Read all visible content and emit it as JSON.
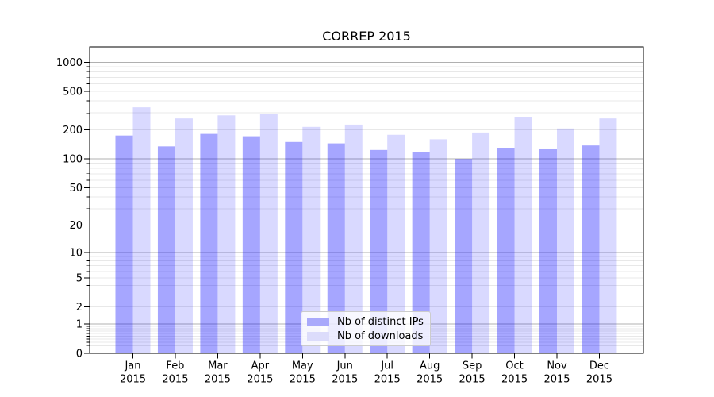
{
  "chart_data": {
    "type": "bar",
    "title": "CORREP 2015",
    "categories": [
      "Jan",
      "Feb",
      "Mar",
      "Apr",
      "May",
      "Jun",
      "Jul",
      "Aug",
      "Sep",
      "Oct",
      "Nov",
      "Dec"
    ],
    "year_label": "2015",
    "series": [
      {
        "name": "Nb of distinct IPs",
        "color": "rgba(0,0,255,0.35)",
        "legend_color": "#a9a9fb",
        "values": [
          175,
          135,
          182,
          172,
          150,
          145,
          124,
          117,
          100,
          129,
          126,
          138
        ]
      },
      {
        "name": "Nb of downloads",
        "color": "rgba(0,0,255,0.15)",
        "legend_color": "#dcdcfb",
        "values": [
          343,
          263,
          283,
          290,
          215,
          227,
          178,
          160,
          188,
          274,
          207,
          263
        ]
      }
    ],
    "yscale": "log1p",
    "yticks": [
      0,
      1,
      2,
      5,
      10,
      20,
      50,
      100,
      200,
      500,
      1000
    ],
    "ylim": [
      0,
      1443
    ],
    "grid": {
      "major_values": [
        1,
        10,
        100,
        1000
      ],
      "minor_base_values": [
        0.1,
        1,
        10,
        100
      ],
      "major_color": "#b0b0b0",
      "minor_color": "#e8e8e8",
      "grid_on": true
    },
    "legend": {
      "position": "lower-center",
      "frame": true
    },
    "axis_color": "#000000",
    "background_color": "#ffffff"
  }
}
